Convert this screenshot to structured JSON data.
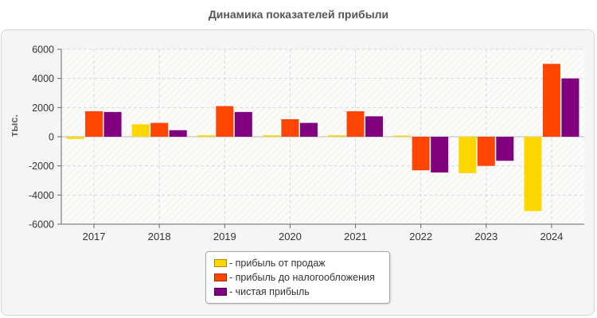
{
  "chart_data": {
    "type": "bar",
    "title": "Динамика показателей прибыли",
    "ylabel": "тыс.",
    "xlabel": "",
    "ylim": [
      -6000,
      6000
    ],
    "yticks": [
      6000,
      4000,
      2000,
      0,
      -2000,
      -4000,
      -6000
    ],
    "grid": true,
    "legend_position": "bottom",
    "categories": [
      "2017",
      "2018",
      "2019",
      "2020",
      "2021",
      "2022",
      "2023",
      "2024"
    ],
    "series": [
      {
        "name": "- прибыль от продаж",
        "color": "#ffd700",
        "values": [
          -150,
          850,
          100,
          100,
          100,
          80,
          -2500,
          -5100
        ]
      },
      {
        "name": "- прибыль до налогообложения",
        "color": "#ff4500",
        "values": [
          1750,
          950,
          2100,
          1200,
          1750,
          -2300,
          -2000,
          5000
        ]
      },
      {
        "name": "- чистая прибыль",
        "color": "#800080",
        "values": [
          1700,
          450,
          1700,
          950,
          1400,
          -2450,
          -1650,
          4000
        ]
      }
    ]
  }
}
